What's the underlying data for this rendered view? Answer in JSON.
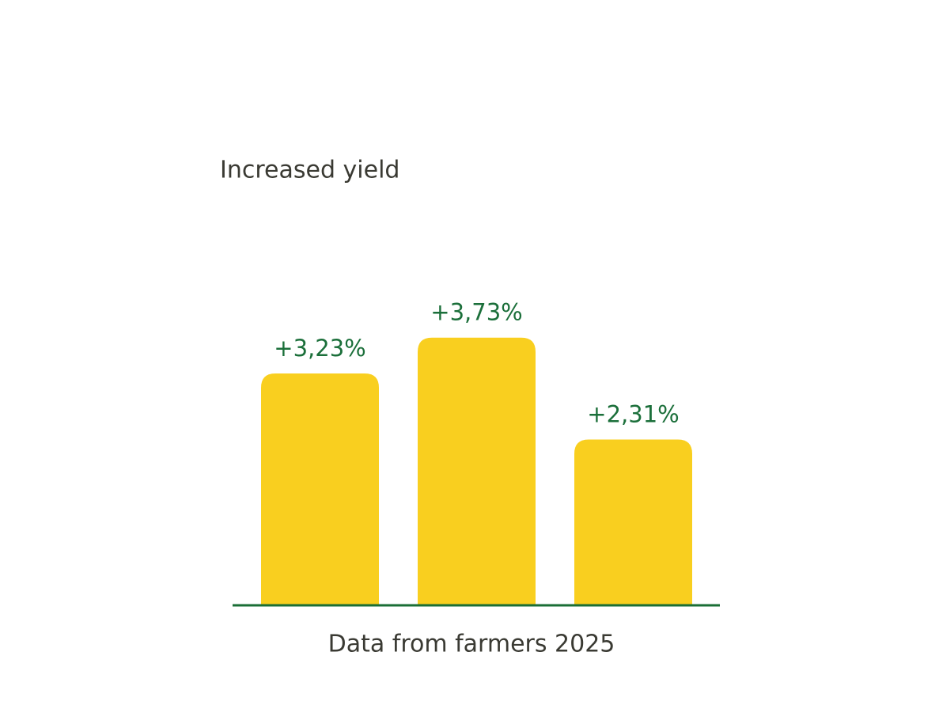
{
  "chart_data": {
    "type": "bar",
    "title": "Increased yield",
    "caption": "Data from farmers 2025",
    "categories": [
      null,
      null,
      null
    ],
    "values": [
      3.23,
      3.73,
      2.31
    ],
    "value_labels": [
      "+3,23%",
      "+3,73%",
      "+2,31%"
    ],
    "color": "#f9cf1f",
    "label_color": "#1b6f3a",
    "baseline_color": "#1a6e35"
  }
}
